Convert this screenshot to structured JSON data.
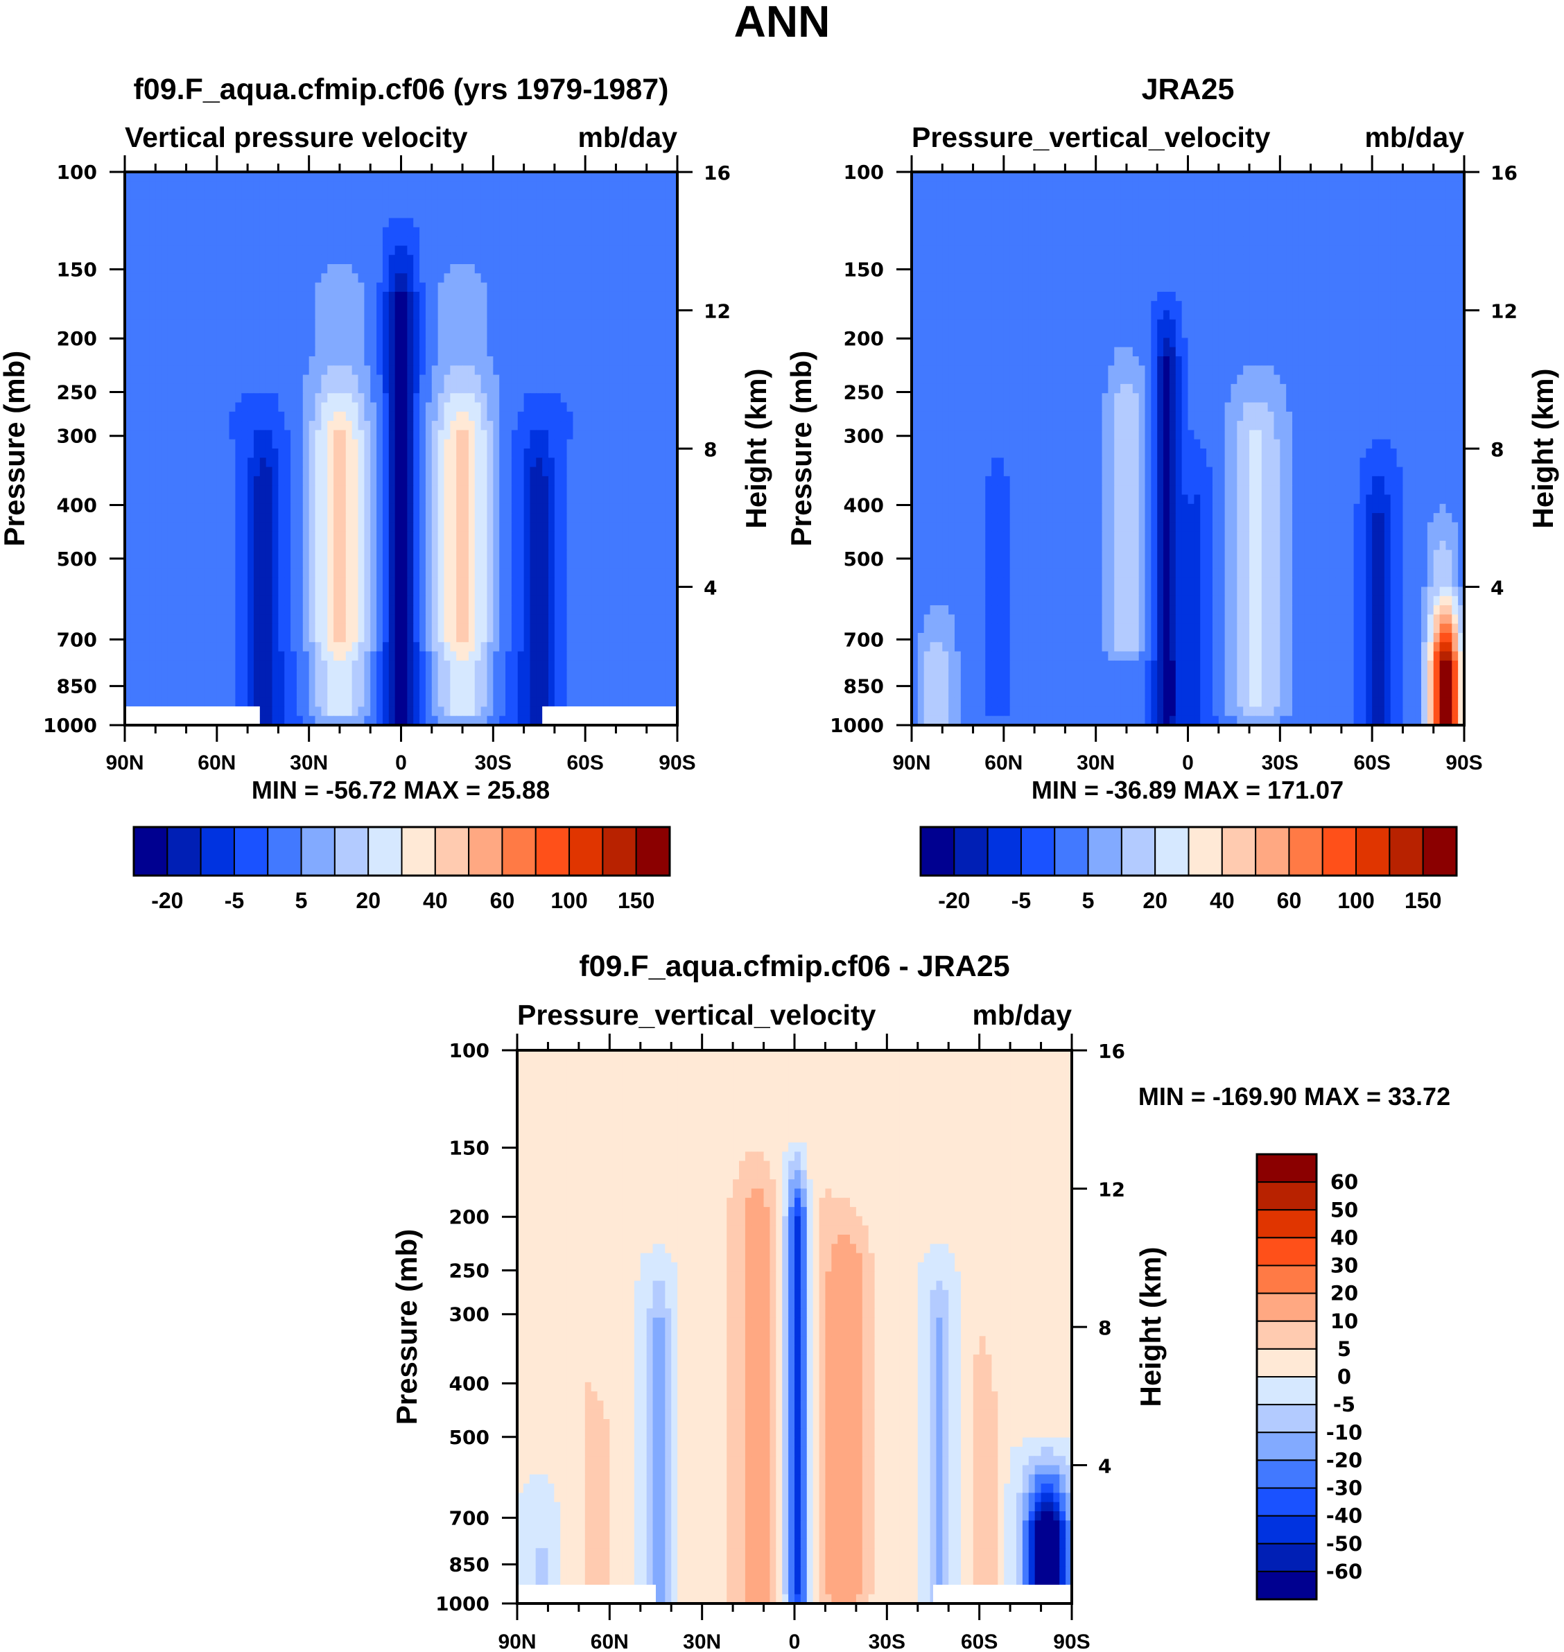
{
  "figure": {
    "main_title": "ANN"
  },
  "palette": {
    "colors": [
      "#000090",
      "#001fb5",
      "#0033e0",
      "#1a52ff",
      "#4279ff",
      "#82aaff",
      "#b3cbff",
      "#d6e8ff",
      "#ffe9d6",
      "#ffcbb0",
      "#ffa882",
      "#ff7a45",
      "#ff5019",
      "#e03500",
      "#b82200",
      "#8b0000"
    ],
    "missing": "#ffffff"
  },
  "chart_data": [
    {
      "type": "heatmap",
      "subtype": "filled-contour",
      "panel_title": "f09.F_aqua.cfmip.cf06 (yrs 1979-1987)",
      "left_string": "Vertical pressure velocity",
      "right_string": "mb/day",
      "xlabel": "",
      "ylabel": "Pressure (mb)",
      "ylabel_right": "Height (km)",
      "x_ticks": [
        "90N",
        "60N",
        "30N",
        "0",
        "30S",
        "60S",
        "90S"
      ],
      "x_range": [
        90,
        -90
      ],
      "y_ticks": [
        100,
        150,
        200,
        250,
        300,
        400,
        500,
        700,
        850,
        1000
      ],
      "y_range": [
        100,
        1000
      ],
      "y_scale": "log",
      "y_right_ticks": [
        16,
        12,
        8,
        4
      ],
      "stats": "MIN = -56.72  MAX =  25.88",
      "min": -56.72,
      "max": 25.88,
      "colorbar": {
        "orientation": "horizontal",
        "labels": [
          "-20",
          "-5",
          "5",
          "20",
          "40",
          "60",
          "100",
          "150"
        ],
        "n_colors": 16
      },
      "features": [
        {
          "lat_center": 0,
          "lat_width": 10,
          "p_top": 180,
          "p_bottom": 1000,
          "level_index": 0,
          "description": "deep ascent core at equator"
        },
        {
          "lat_center": 20,
          "lat_width": 20,
          "p_top": 280,
          "p_bottom": 950,
          "level_index": 7,
          "description": "subtropical descent NH"
        },
        {
          "lat_center": -20,
          "lat_width": 20,
          "p_top": 280,
          "p_bottom": 950,
          "level_index": 7,
          "description": "subtropical descent SH"
        },
        {
          "lat_center": 45,
          "lat_width": 10,
          "p_top": 380,
          "p_bottom": 950,
          "level_index": 1,
          "description": "midlatitude ascent NH"
        },
        {
          "lat_center": -45,
          "lat_width": 10,
          "p_top": 380,
          "p_bottom": 950,
          "level_index": 1,
          "description": "midlatitude ascent SH"
        }
      ],
      "missing_below": {
        "pressure": 925,
        "lat_ranges": [
          [
            90,
            46
          ],
          [
            -46,
            -90
          ]
        ]
      }
    },
    {
      "type": "heatmap",
      "subtype": "filled-contour",
      "panel_title": "JRA25",
      "left_string": "Pressure_vertical_velocity",
      "right_string": "mb/day",
      "xlabel": "",
      "ylabel": "Pressure (mb)",
      "ylabel_right": "Height (km)",
      "x_ticks": [
        "90N",
        "60N",
        "30N",
        "0",
        "30S",
        "60S",
        "90S"
      ],
      "x_range": [
        90,
        -90
      ],
      "y_ticks": [
        100,
        150,
        200,
        250,
        300,
        400,
        500,
        700,
        850,
        1000
      ],
      "y_range": [
        100,
        1000
      ],
      "y_scale": "log",
      "y_right_ticks": [
        16,
        12,
        8,
        4
      ],
      "stats": "MIN = -36.89  MAX = 171.07",
      "min": -36.89,
      "max": 171.07,
      "colorbar": {
        "orientation": "horizontal",
        "labels": [
          "-20",
          "-5",
          "5",
          "20",
          "40",
          "60",
          "100",
          "150"
        ],
        "n_colors": 16
      },
      "features": [
        {
          "lat_center": 7,
          "lat_width": 8,
          "p_top": 230,
          "p_bottom": 950,
          "level_index": 0,
          "description": "ITCZ ascent core"
        },
        {
          "lat_center": 20,
          "lat_width": 14,
          "p_top": 250,
          "p_bottom": 700,
          "level_index": 6,
          "description": "subtropical descent NH"
        },
        {
          "lat_center": -20,
          "lat_width": 16,
          "p_top": 300,
          "p_bottom": 900,
          "level_index": 6,
          "description": "subtropical descent SH"
        },
        {
          "lat_center": -80,
          "lat_width": 14,
          "p_top": 700,
          "p_bottom": 1000,
          "level_index": 14,
          "description": "Antarctic surface descent"
        }
      ]
    },
    {
      "type": "heatmap",
      "subtype": "filled-contour",
      "panel_title": "f09.F_aqua.cfmip.cf06 - JRA25",
      "left_string": "Pressure_vertical_velocity",
      "right_string": "mb/day",
      "xlabel": "",
      "ylabel": "Pressure (mb)",
      "ylabel_right": "Height (km)",
      "x_ticks": [
        "90N",
        "60N",
        "30N",
        "0",
        "30S",
        "60S",
        "90S"
      ],
      "x_range": [
        90,
        -90
      ],
      "y_ticks": [
        100,
        150,
        200,
        250,
        300,
        400,
        500,
        700,
        850,
        1000
      ],
      "y_range": [
        100,
        1000
      ],
      "y_scale": "log",
      "y_right_ticks": [
        16,
        12,
        8,
        4
      ],
      "stats": "MIN = -169.90  MAX =  33.72",
      "min": -169.9,
      "max": 33.72,
      "colorbar": {
        "orientation": "vertical",
        "labels": [
          "60",
          "50",
          "40",
          "30",
          "20",
          "10",
          "5",
          "0",
          "-5",
          "-10",
          "-20",
          "-30",
          "-40",
          "-50",
          "-60"
        ],
        "n_colors": 16
      },
      "features": [
        {
          "lat_center": 12,
          "lat_width": 12,
          "p_top": 200,
          "p_bottom": 950,
          "level_index": 11,
          "description": "positive difference NH tropics"
        },
        {
          "lat_center": -1,
          "lat_width": 6,
          "p_top": 200,
          "p_bottom": 950,
          "level_index": 3,
          "description": "negative difference at equator"
        },
        {
          "lat_center": -20,
          "lat_width": 14,
          "p_top": 250,
          "p_bottom": 950,
          "level_index": 10,
          "description": "positive difference SH subtropics"
        },
        {
          "lat_center": -80,
          "lat_width": 14,
          "p_top": 750,
          "p_bottom": 925,
          "level_index": 0,
          "description": "strong negative difference over Antarctica"
        }
      ]
    }
  ]
}
